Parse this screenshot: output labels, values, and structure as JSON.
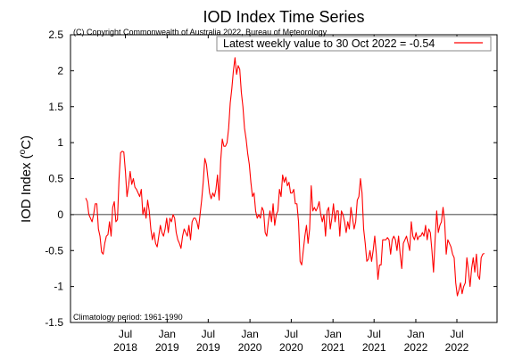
{
  "chart_data": {
    "type": "line",
    "title": "IOD Index Time Series",
    "copyright": "(C) Copyright Commonwealth of Australia 2022, Bureau of Meteorology",
    "ylabel": "IOD Index (°C)",
    "ylabel_main": "IOD Index (",
    "ylabel_sup": "o",
    "ylabel_unit": "C)",
    "xlabel": "",
    "footnote": "Climatology period: 1961-1990",
    "ylim": [
      -1.5,
      2.5
    ],
    "xlim": [
      "2017-11-01",
      "2022-12-25"
    ],
    "y_ticks": [
      -1.5,
      -1,
      -0.5,
      0,
      0.5,
      1,
      1.5,
      2,
      2.5
    ],
    "y_tick_labels": [
      "-1.5",
      "-1",
      "-0.5",
      "0",
      "0.5",
      "1",
      "1.5",
      "2",
      "2.5"
    ],
    "x_ticks": [
      {
        "date": "2018-07-01",
        "month": "Jul",
        "year": "2018"
      },
      {
        "date": "2019-01-01",
        "month": "Jan",
        "year": "2019"
      },
      {
        "date": "2019-07-01",
        "month": "Jul",
        "year": "2019"
      },
      {
        "date": "2020-01-01",
        "month": "Jan",
        "year": "2020"
      },
      {
        "date": "2020-07-01",
        "month": "Jul",
        "year": "2020"
      },
      {
        "date": "2021-01-01",
        "month": "Jan",
        "year": "2021"
      },
      {
        "date": "2021-07-01",
        "month": "Jul",
        "year": "2021"
      },
      {
        "date": "2022-01-01",
        "month": "Jan",
        "year": "2022"
      },
      {
        "date": "2022-07-01",
        "month": "Jul",
        "year": "2022"
      }
    ],
    "zero_line": true,
    "grid": false,
    "legend_position": "top-right",
    "series": [
      {
        "name": "Latest weekly value to 30 Oct 2022 = -0.54",
        "color": "#ff0000",
        "points": [
          [
            "2018-01-07",
            0.23
          ],
          [
            "2018-01-14",
            0.18
          ],
          [
            "2018-01-21",
            0.0
          ],
          [
            "2018-01-28",
            -0.05
          ],
          [
            "2018-02-04",
            -0.1
          ],
          [
            "2018-02-11",
            0.0
          ],
          [
            "2018-02-18",
            0.15
          ],
          [
            "2018-02-25",
            0.15
          ],
          [
            "2018-03-04",
            -0.2
          ],
          [
            "2018-03-11",
            -0.3
          ],
          [
            "2018-03-18",
            -0.52
          ],
          [
            "2018-03-25",
            -0.55
          ],
          [
            "2018-04-01",
            -0.4
          ],
          [
            "2018-04-08",
            -0.3
          ],
          [
            "2018-04-15",
            -0.28
          ],
          [
            "2018-04-22",
            -0.1
          ],
          [
            "2018-04-29",
            -0.3
          ],
          [
            "2018-05-06",
            0.1
          ],
          [
            "2018-05-13",
            0.18
          ],
          [
            "2018-05-20",
            -0.1
          ],
          [
            "2018-05-27",
            -0.07
          ],
          [
            "2018-06-03",
            0.5
          ],
          [
            "2018-06-10",
            0.86
          ],
          [
            "2018-06-17",
            0.88
          ],
          [
            "2018-06-24",
            0.87
          ],
          [
            "2018-07-01",
            0.6
          ],
          [
            "2018-07-08",
            0.25
          ],
          [
            "2018-07-15",
            0.4
          ],
          [
            "2018-07-22",
            0.6
          ],
          [
            "2018-07-29",
            0.42
          ],
          [
            "2018-08-05",
            0.5
          ],
          [
            "2018-08-12",
            0.38
          ],
          [
            "2018-08-19",
            0.35
          ],
          [
            "2018-08-26",
            0.3
          ],
          [
            "2018-09-02",
            0.25
          ],
          [
            "2018-09-09",
            0.35
          ],
          [
            "2018-09-16",
            0.0
          ],
          [
            "2018-09-23",
            0.1
          ],
          [
            "2018-09-30",
            -0.05
          ],
          [
            "2018-10-07",
            0.2
          ],
          [
            "2018-10-14",
            0.05
          ],
          [
            "2018-10-21",
            -0.2
          ],
          [
            "2018-10-28",
            -0.35
          ],
          [
            "2018-11-04",
            -0.25
          ],
          [
            "2018-11-11",
            -0.4
          ],
          [
            "2018-11-18",
            -0.45
          ],
          [
            "2018-11-25",
            -0.3
          ],
          [
            "2018-12-02",
            -0.15
          ],
          [
            "2018-12-09",
            -0.25
          ],
          [
            "2018-12-16",
            -0.3
          ],
          [
            "2018-12-23",
            -0.2
          ],
          [
            "2018-12-30",
            -0.05
          ],
          [
            "2019-01-06",
            -0.25
          ],
          [
            "2019-01-13",
            -0.05
          ],
          [
            "2019-01-20",
            -0.1
          ],
          [
            "2019-01-27",
            0.0
          ],
          [
            "2019-02-03",
            -0.05
          ],
          [
            "2019-02-10",
            -0.25
          ],
          [
            "2019-02-17",
            -0.35
          ],
          [
            "2019-02-24",
            -0.4
          ],
          [
            "2019-03-03",
            -0.47
          ],
          [
            "2019-03-10",
            -0.3
          ],
          [
            "2019-03-17",
            -0.2
          ],
          [
            "2019-03-24",
            -0.25
          ],
          [
            "2019-03-31",
            -0.3
          ],
          [
            "2019-04-07",
            -0.15
          ],
          [
            "2019-04-14",
            -0.35
          ],
          [
            "2019-04-21",
            -0.1
          ],
          [
            "2019-04-28",
            -0.05
          ],
          [
            "2019-05-05",
            -0.05
          ],
          [
            "2019-05-12",
            -0.1
          ],
          [
            "2019-05-19",
            -0.2
          ],
          [
            "2019-05-26",
            0.0
          ],
          [
            "2019-06-02",
            0.2
          ],
          [
            "2019-06-09",
            0.45
          ],
          [
            "2019-06-16",
            0.78
          ],
          [
            "2019-06-23",
            0.7
          ],
          [
            "2019-06-30",
            0.5
          ],
          [
            "2019-07-07",
            0.3
          ],
          [
            "2019-07-14",
            0.22
          ],
          [
            "2019-07-21",
            0.3
          ],
          [
            "2019-07-28",
            0.25
          ],
          [
            "2019-08-04",
            0.35
          ],
          [
            "2019-08-11",
            0.55
          ],
          [
            "2019-08-18",
            0.2
          ],
          [
            "2019-08-25",
            0.75
          ],
          [
            "2019-09-01",
            1.05
          ],
          [
            "2019-09-08",
            0.95
          ],
          [
            "2019-09-15",
            0.95
          ],
          [
            "2019-09-22",
            1.0
          ],
          [
            "2019-09-29",
            1.2
          ],
          [
            "2019-10-06",
            1.55
          ],
          [
            "2019-10-13",
            1.75
          ],
          [
            "2019-10-20",
            2.0
          ],
          [
            "2019-10-27",
            2.18
          ],
          [
            "2019-11-03",
            1.95
          ],
          [
            "2019-11-10",
            2.07
          ],
          [
            "2019-11-17",
            2.02
          ],
          [
            "2019-11-24",
            1.7
          ],
          [
            "2019-12-01",
            1.5
          ],
          [
            "2019-12-08",
            1.2
          ],
          [
            "2019-12-15",
            1.05
          ],
          [
            "2019-12-22",
            0.85
          ],
          [
            "2019-12-29",
            0.7
          ],
          [
            "2020-01-05",
            0.45
          ],
          [
            "2020-01-12",
            0.25
          ],
          [
            "2020-01-19",
            0.3
          ],
          [
            "2020-01-26",
            0.05
          ],
          [
            "2020-02-02",
            -0.05
          ],
          [
            "2020-02-09",
            0.0
          ],
          [
            "2020-02-16",
            -0.05
          ],
          [
            "2020-02-23",
            0.1
          ],
          [
            "2020-03-01",
            0.05
          ],
          [
            "2020-03-08",
            -0.25
          ],
          [
            "2020-03-15",
            -0.3
          ],
          [
            "2020-03-22",
            -0.1
          ],
          [
            "2020-03-29",
            0.05
          ],
          [
            "2020-04-05",
            -0.1
          ],
          [
            "2020-04-12",
            0.15
          ],
          [
            "2020-04-19",
            -0.15
          ],
          [
            "2020-04-26",
            0.0
          ],
          [
            "2020-05-03",
            0.05
          ],
          [
            "2020-05-10",
            0.35
          ],
          [
            "2020-05-17",
            0.25
          ],
          [
            "2020-05-24",
            0.55
          ],
          [
            "2020-05-31",
            0.45
          ],
          [
            "2020-06-07",
            0.52
          ],
          [
            "2020-06-14",
            0.4
          ],
          [
            "2020-06-21",
            0.45
          ],
          [
            "2020-06-28",
            0.3
          ],
          [
            "2020-07-05",
            0.3
          ],
          [
            "2020-07-12",
            0.35
          ],
          [
            "2020-07-19",
            0.15
          ],
          [
            "2020-07-26",
            0.15
          ],
          [
            "2020-08-02",
            -0.1
          ],
          [
            "2020-08-09",
            -0.65
          ],
          [
            "2020-08-16",
            -0.7
          ],
          [
            "2020-08-23",
            -0.5
          ],
          [
            "2020-08-30",
            -0.3
          ],
          [
            "2020-09-06",
            -0.15
          ],
          [
            "2020-09-13",
            -0.4
          ],
          [
            "2020-09-20",
            -0.2
          ],
          [
            "2020-09-27",
            0.4
          ],
          [
            "2020-10-04",
            0.05
          ],
          [
            "2020-10-11",
            0.1
          ],
          [
            "2020-10-18",
            0.05
          ],
          [
            "2020-10-25",
            0.1
          ],
          [
            "2020-11-01",
            0.18
          ],
          [
            "2020-11-08",
            0.0
          ],
          [
            "2020-11-15",
            -0.1
          ],
          [
            "2020-11-22",
            0.0
          ],
          [
            "2020-11-29",
            -0.3
          ],
          [
            "2020-12-06",
            0.05
          ],
          [
            "2020-12-13",
            0.1
          ],
          [
            "2020-12-20",
            -0.2
          ],
          [
            "2020-12-27",
            -0.05
          ],
          [
            "2021-01-03",
            0.15
          ],
          [
            "2021-01-10",
            -0.1
          ],
          [
            "2021-01-17",
            0.05
          ],
          [
            "2021-01-24",
            0.05
          ],
          [
            "2021-01-31",
            -0.3
          ],
          [
            "2021-02-07",
            0.05
          ],
          [
            "2021-02-14",
            0.0
          ],
          [
            "2021-02-21",
            -0.1
          ],
          [
            "2021-02-28",
            -0.25
          ],
          [
            "2021-03-07",
            -0.1
          ],
          [
            "2021-03-14",
            -0.2
          ],
          [
            "2021-03-21",
            0.1
          ],
          [
            "2021-03-28",
            -0.05
          ],
          [
            "2021-04-04",
            -0.2
          ],
          [
            "2021-04-11",
            -0.1
          ],
          [
            "2021-04-18",
            0.2
          ],
          [
            "2021-04-25",
            0.25
          ],
          [
            "2021-05-02",
            0.5
          ],
          [
            "2021-05-09",
            0.3
          ],
          [
            "2021-05-16",
            -0.2
          ],
          [
            "2021-05-23",
            -0.4
          ],
          [
            "2021-05-30",
            -0.65
          ],
          [
            "2021-06-06",
            -0.62
          ],
          [
            "2021-06-13",
            -0.5
          ],
          [
            "2021-06-20",
            -0.65
          ],
          [
            "2021-06-27",
            -0.5
          ],
          [
            "2021-07-04",
            -0.3
          ],
          [
            "2021-07-11",
            -0.55
          ],
          [
            "2021-07-18",
            -0.9
          ],
          [
            "2021-07-25",
            -0.7
          ],
          [
            "2021-08-01",
            -0.7
          ],
          [
            "2021-08-08",
            -0.35
          ],
          [
            "2021-08-15",
            -0.35
          ],
          [
            "2021-08-22",
            -0.35
          ],
          [
            "2021-08-29",
            -0.32
          ],
          [
            "2021-09-05",
            -0.35
          ],
          [
            "2021-09-12",
            -0.55
          ],
          [
            "2021-09-19",
            -0.35
          ],
          [
            "2021-09-26",
            -0.3
          ],
          [
            "2021-10-03",
            -0.35
          ],
          [
            "2021-10-10",
            -0.5
          ],
          [
            "2021-10-17",
            -0.3
          ],
          [
            "2021-10-24",
            -0.55
          ],
          [
            "2021-10-31",
            -0.75
          ],
          [
            "2021-11-07",
            -0.4
          ],
          [
            "2021-11-14",
            -0.35
          ],
          [
            "2021-11-21",
            -0.3
          ],
          [
            "2021-11-28",
            -0.4
          ],
          [
            "2021-12-05",
            -0.5
          ],
          [
            "2021-12-12",
            -0.1
          ],
          [
            "2021-12-19",
            -0.3
          ],
          [
            "2021-12-26",
            -0.35
          ],
          [
            "2022-01-02",
            -0.25
          ],
          [
            "2022-01-09",
            -0.35
          ],
          [
            "2022-01-16",
            -0.3
          ],
          [
            "2022-01-23",
            -0.3
          ],
          [
            "2022-01-30",
            -0.25
          ],
          [
            "2022-02-06",
            -0.3
          ],
          [
            "2022-02-13",
            -0.15
          ],
          [
            "2022-02-20",
            -0.35
          ],
          [
            "2022-02-27",
            -0.2
          ],
          [
            "2022-03-06",
            -0.25
          ],
          [
            "2022-03-13",
            -0.5
          ],
          [
            "2022-03-20",
            -0.8
          ],
          [
            "2022-03-27",
            -0.35
          ],
          [
            "2022-04-03",
            0.05
          ],
          [
            "2022-04-10",
            -0.25
          ],
          [
            "2022-04-17",
            -0.15
          ],
          [
            "2022-04-24",
            -0.1
          ],
          [
            "2022-05-01",
            0.1
          ],
          [
            "2022-05-08",
            -0.1
          ],
          [
            "2022-05-15",
            -0.55
          ],
          [
            "2022-05-22",
            -0.35
          ],
          [
            "2022-05-29",
            -0.4
          ],
          [
            "2022-06-05",
            -0.45
          ],
          [
            "2022-06-12",
            -0.55
          ],
          [
            "2022-06-19",
            -0.6
          ],
          [
            "2022-06-26",
            -0.95
          ],
          [
            "2022-07-03",
            -1.13
          ],
          [
            "2022-07-10",
            -1.05
          ],
          [
            "2022-07-17",
            -0.95
          ],
          [
            "2022-07-24",
            -1.1
          ],
          [
            "2022-07-31",
            -1.0
          ],
          [
            "2022-08-07",
            -0.95
          ],
          [
            "2022-08-14",
            -0.6
          ],
          [
            "2022-08-21",
            -0.78
          ],
          [
            "2022-08-28",
            -1.0
          ],
          [
            "2022-09-04",
            -0.75
          ],
          [
            "2022-09-11",
            -0.6
          ],
          [
            "2022-09-18",
            -0.8
          ],
          [
            "2022-09-25",
            -0.55
          ],
          [
            "2022-10-02",
            -0.85
          ],
          [
            "2022-10-09",
            -0.9
          ],
          [
            "2022-10-16",
            -0.6
          ],
          [
            "2022-10-23",
            -0.55
          ],
          [
            "2022-10-30",
            -0.54
          ]
        ]
      }
    ]
  }
}
